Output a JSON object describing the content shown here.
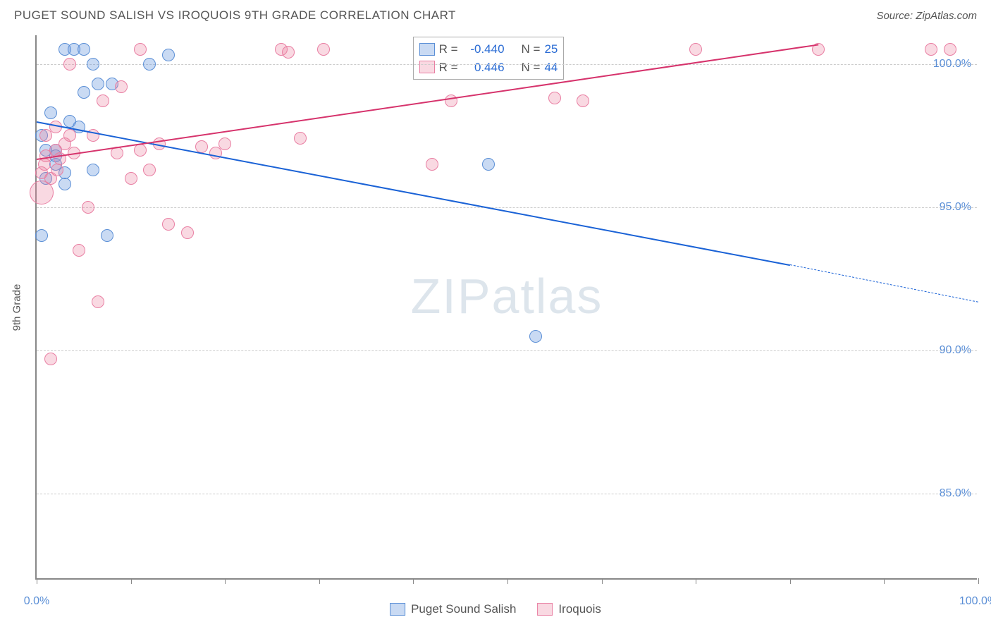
{
  "header": {
    "title": "PUGET SOUND SALISH VS IROQUOIS 9TH GRADE CORRELATION CHART",
    "source": "Source: ZipAtlas.com"
  },
  "watermark": "ZIPatlas",
  "ylabel": "9th Grade",
  "chart": {
    "type": "scatter-correlation",
    "background_color": "#ffffff",
    "grid_color": "#cccccc",
    "axis_color": "#888888",
    "xlim": [
      0,
      100
    ],
    "ylim": [
      82,
      101
    ],
    "x_ticks": [
      0,
      10,
      20,
      30,
      40,
      50,
      60,
      70,
      80,
      90,
      100
    ],
    "x_tick_labels": [
      {
        "value": 0,
        "label": "0.0%"
      },
      {
        "value": 100,
        "label": "100.0%"
      }
    ],
    "y_gridlines": [
      85,
      90,
      95,
      100
    ],
    "y_tick_labels": [
      {
        "value": 85,
        "label": "85.0%"
      },
      {
        "value": 90,
        "label": "90.0%"
      },
      {
        "value": 95,
        "label": "95.0%"
      },
      {
        "value": 100,
        "label": "100.0%"
      }
    ],
    "point_radius": 9,
    "point_border_width": 1.2,
    "series": [
      {
        "name": "Puget Sound Salish",
        "fill_color": "rgba(100,150,220,0.35)",
        "stroke_color": "#5b8fd6",
        "trend_color": "#1a62d6",
        "trend_width": 2.2,
        "R": "-0.440",
        "N": "25",
        "trend": {
          "x1": 0,
          "y1": 98.0,
          "x2_solid": 80,
          "y2_solid": 93.0,
          "x2": 100,
          "y2": 91.7
        },
        "points": [
          {
            "x": 0.5,
            "y": 97.5
          },
          {
            "x": 2.0,
            "y": 96.5
          },
          {
            "x": 1.0,
            "y": 97.0
          },
          {
            "x": 3.0,
            "y": 100.5
          },
          {
            "x": 4.0,
            "y": 100.5
          },
          {
            "x": 5.0,
            "y": 100.5
          },
          {
            "x": 6.0,
            "y": 100.0
          },
          {
            "x": 5.0,
            "y": 99.0
          },
          {
            "x": 6.5,
            "y": 99.3
          },
          {
            "x": 8.0,
            "y": 99.3
          },
          {
            "x": 3.5,
            "y": 98.0
          },
          {
            "x": 2.0,
            "y": 97.0
          },
          {
            "x": 1.0,
            "y": 96.0
          },
          {
            "x": 3.0,
            "y": 95.8
          },
          {
            "x": 6.0,
            "y": 96.3
          },
          {
            "x": 0.5,
            "y": 94.0
          },
          {
            "x": 7.5,
            "y": 94.0
          },
          {
            "x": 12.0,
            "y": 100.0
          },
          {
            "x": 14.0,
            "y": 100.3
          },
          {
            "x": 53.0,
            "y": 90.5
          },
          {
            "x": 48.0,
            "y": 96.5
          },
          {
            "x": 2.0,
            "y": 96.8
          },
          {
            "x": 3.0,
            "y": 96.2
          },
          {
            "x": 4.5,
            "y": 97.8
          },
          {
            "x": 1.5,
            "y": 98.3
          }
        ]
      },
      {
        "name": "Iroquois",
        "fill_color": "rgba(235,130,160,0.30)",
        "stroke_color": "#e97fa3",
        "trend_color": "#d6336c",
        "trend_width": 2.0,
        "R": "0.446",
        "N": "44",
        "trend": {
          "x1": 0,
          "y1": 96.7,
          "x2_solid": 83,
          "y2_solid": 100.7,
          "x2": 83,
          "y2": 100.7
        },
        "points": [
          {
            "x": 0.5,
            "y": 95.5,
            "r": 17
          },
          {
            "x": 0.5,
            "y": 96.2
          },
          {
            "x": 1.0,
            "y": 96.8
          },
          {
            "x": 2.0,
            "y": 97.0
          },
          {
            "x": 3.0,
            "y": 97.2
          },
          {
            "x": 1.5,
            "y": 96.0
          },
          {
            "x": 2.5,
            "y": 96.7
          },
          {
            "x": 4.0,
            "y": 96.9
          },
          {
            "x": 5.5,
            "y": 95.0
          },
          {
            "x": 7.0,
            "y": 98.7
          },
          {
            "x": 8.5,
            "y": 96.9
          },
          {
            "x": 9.0,
            "y": 99.2
          },
          {
            "x": 11.0,
            "y": 100.5
          },
          {
            "x": 13.0,
            "y": 97.2
          },
          {
            "x": 12.0,
            "y": 96.3
          },
          {
            "x": 14.0,
            "y": 94.4
          },
          {
            "x": 16.0,
            "y": 94.1
          },
          {
            "x": 10.0,
            "y": 96.0
          },
          {
            "x": 4.5,
            "y": 93.5
          },
          {
            "x": 6.5,
            "y": 91.7
          },
          {
            "x": 1.5,
            "y": 89.7
          },
          {
            "x": 17.5,
            "y": 97.1
          },
          {
            "x": 19.0,
            "y": 96.9
          },
          {
            "x": 20.0,
            "y": 97.2
          },
          {
            "x": 26.0,
            "y": 100.5
          },
          {
            "x": 26.7,
            "y": 100.4
          },
          {
            "x": 28.0,
            "y": 97.4
          },
          {
            "x": 30.5,
            "y": 100.5
          },
          {
            "x": 44.0,
            "y": 98.7
          },
          {
            "x": 42.0,
            "y": 96.5
          },
          {
            "x": 55.0,
            "y": 98.8
          },
          {
            "x": 58.0,
            "y": 98.7
          },
          {
            "x": 70.0,
            "y": 100.5
          },
          {
            "x": 83.0,
            "y": 100.5
          },
          {
            "x": 95.0,
            "y": 100.5
          },
          {
            "x": 97.0,
            "y": 100.5
          },
          {
            "x": 3.5,
            "y": 97.5
          },
          {
            "x": 2.0,
            "y": 97.8
          },
          {
            "x": 6.0,
            "y": 97.5
          },
          {
            "x": 1.0,
            "y": 97.5
          },
          {
            "x": 11.0,
            "y": 97.0
          },
          {
            "x": 0.8,
            "y": 96.5
          },
          {
            "x": 2.2,
            "y": 96.3
          },
          {
            "x": 3.5,
            "y": 100.0
          }
        ]
      }
    ]
  },
  "legend_top": {
    "rows": [
      {
        "swatch_fill": "rgba(100,150,220,0.35)",
        "swatch_stroke": "#5b8fd6",
        "R_label": "R =",
        "R_val": "-0.440",
        "N_label": "N =",
        "N_val": "25"
      },
      {
        "swatch_fill": "rgba(235,130,160,0.30)",
        "swatch_stroke": "#e97fa3",
        "R_label": "R =",
        "R_val": "0.446",
        "N_label": "N =",
        "N_val": "44"
      }
    ]
  },
  "legend_bottom": {
    "items": [
      {
        "swatch_fill": "rgba(100,150,220,0.35)",
        "swatch_stroke": "#5b8fd6",
        "label": "Puget Sound Salish"
      },
      {
        "swatch_fill": "rgba(235,130,160,0.30)",
        "swatch_stroke": "#e97fa3",
        "label": "Iroquois"
      }
    ]
  }
}
